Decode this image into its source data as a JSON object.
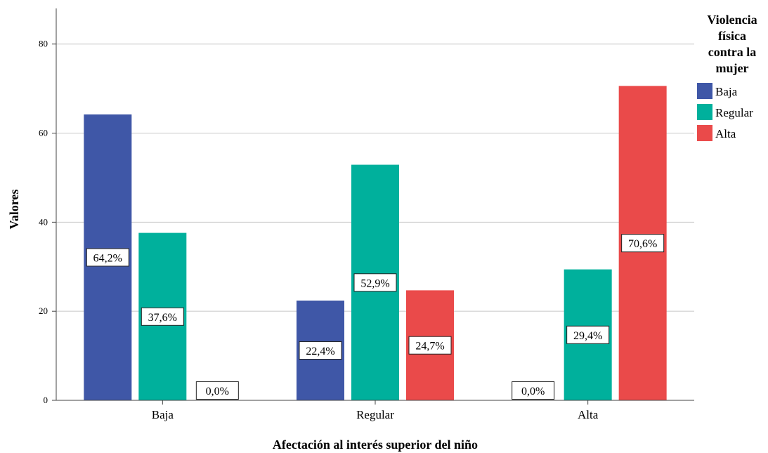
{
  "chart_data": {
    "type": "bar",
    "title": "",
    "xlabel": "Afectación al interés superior del niño",
    "ylabel": "Valores",
    "categories": [
      "Baja",
      "Regular",
      "Alta"
    ],
    "ylim": [
      0,
      88
    ],
    "yticks": [
      0,
      20,
      40,
      60,
      80
    ],
    "grid": true,
    "legend": {
      "title": "Violencia física contra la mujer",
      "position": "top-right"
    },
    "series": [
      {
        "name": "Baja",
        "color": "#3F57A7",
        "values": [
          64.2,
          22.4,
          0.0
        ],
        "labels": [
          "64,2%",
          "22,4%",
          "0,0%"
        ]
      },
      {
        "name": "Regular",
        "color": "#00B09C",
        "values": [
          37.6,
          52.9,
          29.4
        ],
        "labels": [
          "37,6%",
          "52,9%",
          "29,4%"
        ]
      },
      {
        "name": "Alta",
        "color": "#EA4A4A",
        "values": [
          0.0,
          24.7,
          70.6
        ],
        "labels": [
          "0,0%",
          "24,7%",
          "70,6%"
        ]
      }
    ]
  }
}
